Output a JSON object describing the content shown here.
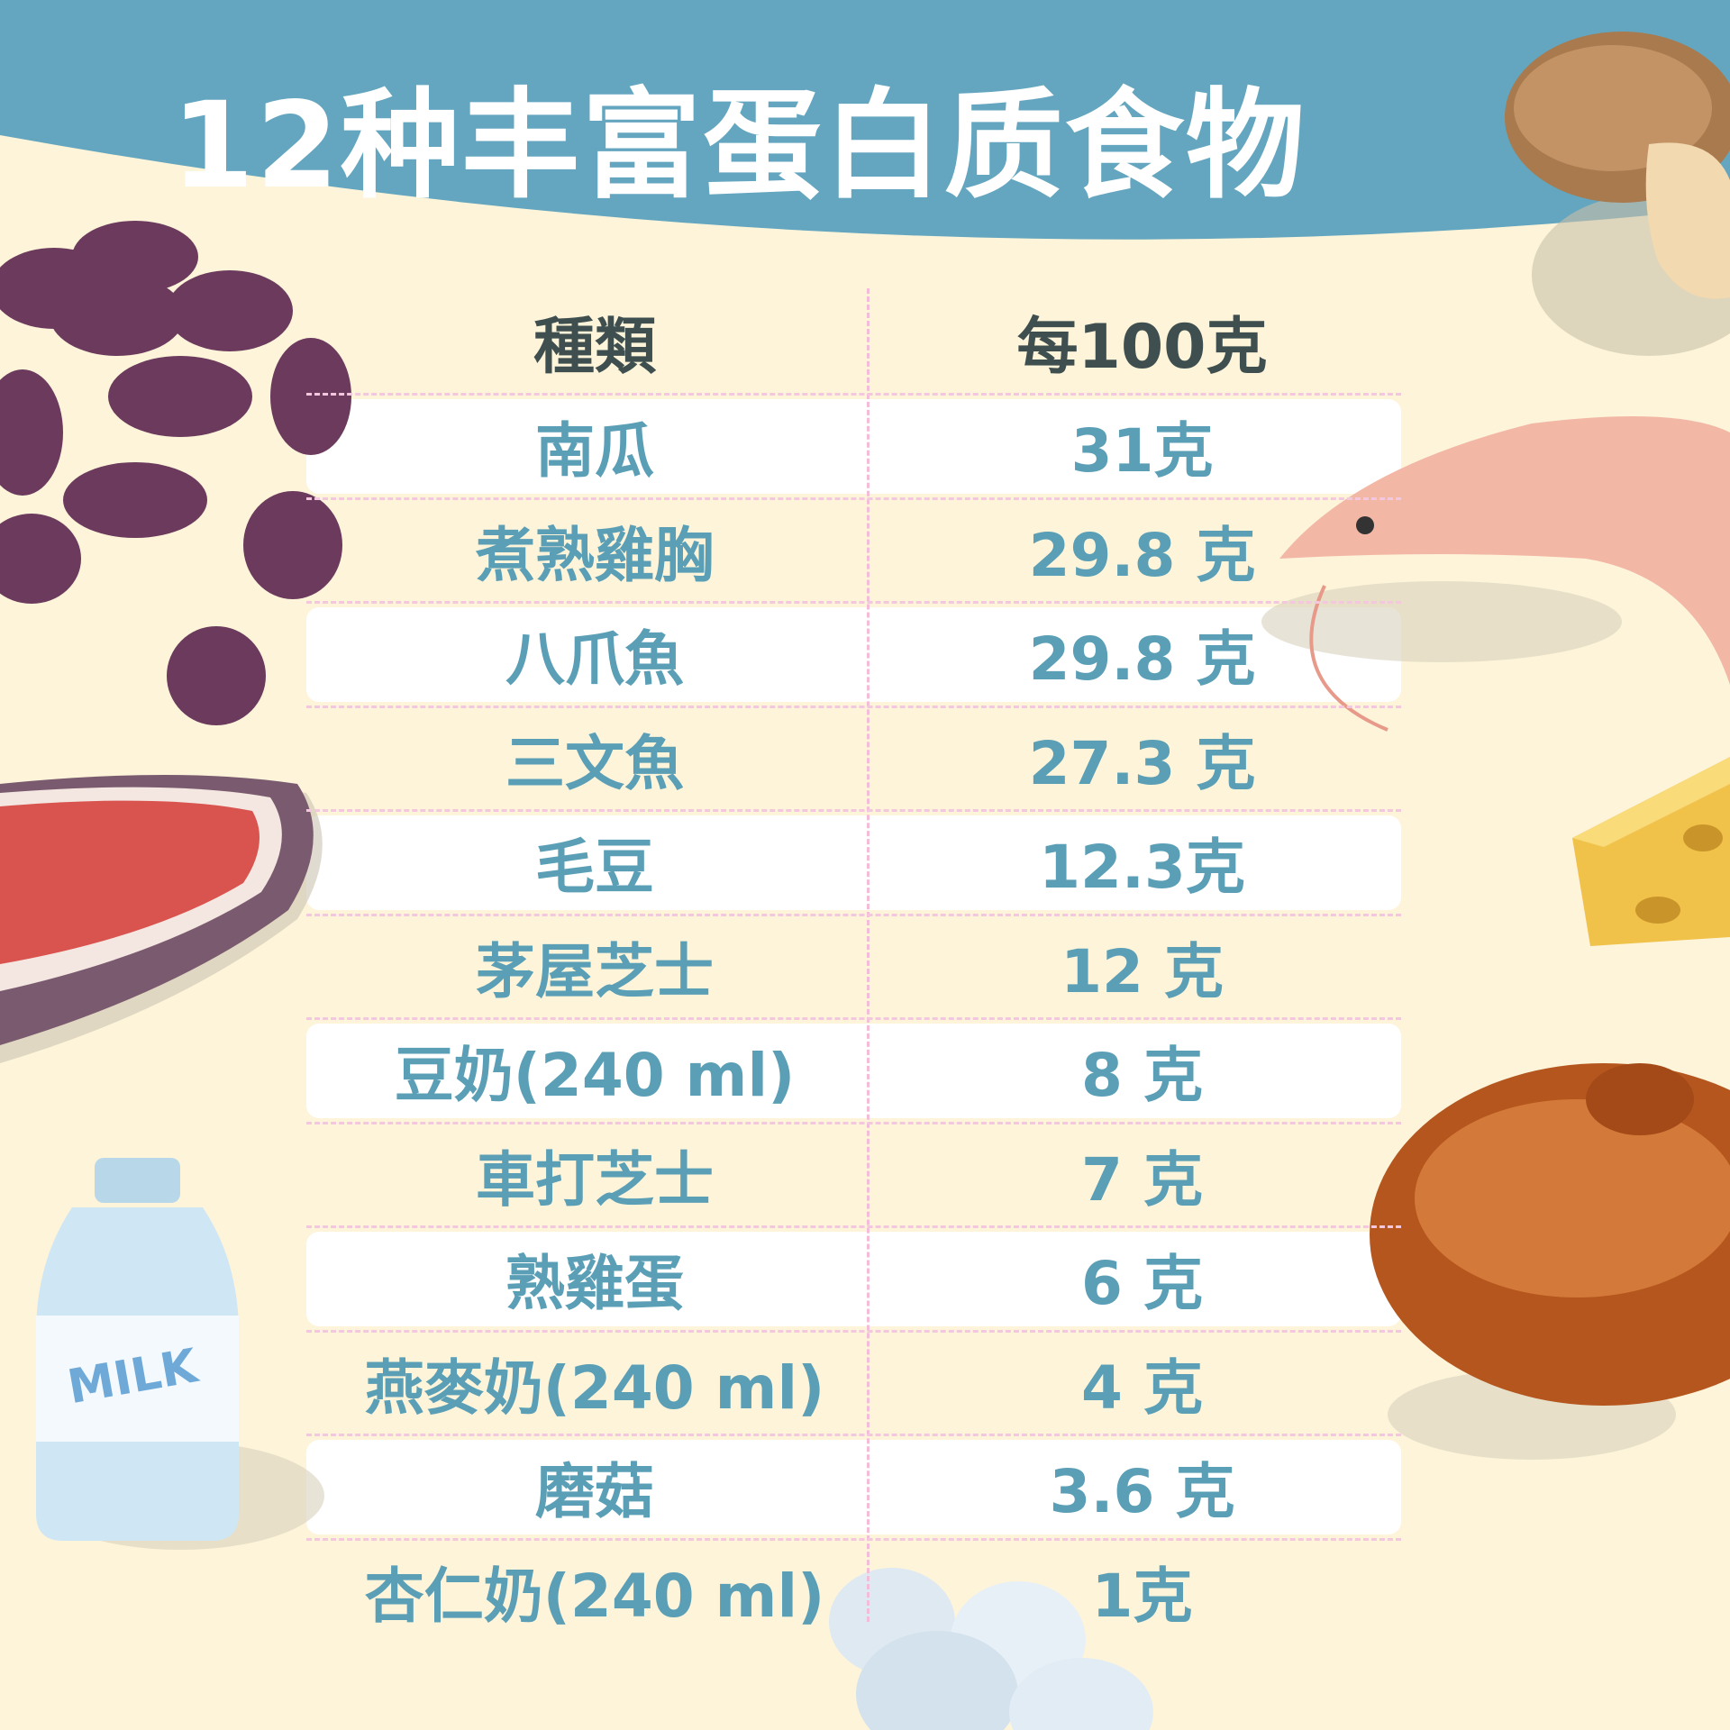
{
  "title": "12种丰富蛋白质食物",
  "colors": {
    "header_band": "#64a6bf",
    "background": "#fdf4da",
    "text": "#5b9fb6",
    "heading_text": "#3f4f4f",
    "divider": "#f3bcd8"
  },
  "table": {
    "headers": [
      "種類",
      "每100克"
    ],
    "rows": [
      {
        "food": "南瓜",
        "protein": "31克"
      },
      {
        "food": "煮熟雞胸",
        "protein": "29.8 克"
      },
      {
        "food": "八爪魚",
        "protein": "29.8 克"
      },
      {
        "food": "三文魚",
        "protein": "27.3 克"
      },
      {
        "food": "毛豆",
        "protein": "12.3克"
      },
      {
        "food": "茅屋芝士",
        "protein": "12 克"
      },
      {
        "food": "豆奶(240 ml)",
        "protein": "8 克"
      },
      {
        "food": "車打芝士",
        "protein": "7 克"
      },
      {
        "food": "熟雞蛋",
        "protein": "6 克"
      },
      {
        "food": "燕麥奶(240 ml)",
        "protein": "4 克"
      },
      {
        "food": "磨菇",
        "protein": "3.6 克"
      },
      {
        "food": "杏仁奶(240 ml)",
        "protein": "1克"
      }
    ]
  },
  "illustrations": [
    "beans",
    "steak",
    "milk-bottle",
    "mushroom",
    "shrimp",
    "cheese",
    "roast-chicken",
    "eggs"
  ],
  "milk_label": "MILK"
}
